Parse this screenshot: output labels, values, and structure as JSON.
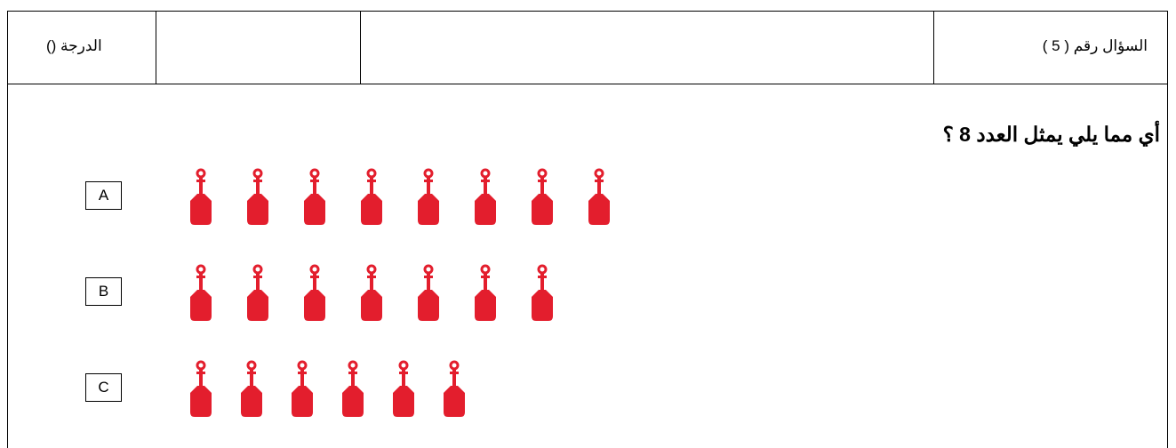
{
  "header": {
    "question_label": "السؤال رقم ( 5 )",
    "score_label": "الدرجة ()"
  },
  "question": "أي مما يلي يمثل العدد 8 ؟",
  "options": [
    {
      "label": "A",
      "count": 8
    },
    {
      "label": "B",
      "count": 7
    },
    {
      "label": "C",
      "count": 6
    }
  ]
}
